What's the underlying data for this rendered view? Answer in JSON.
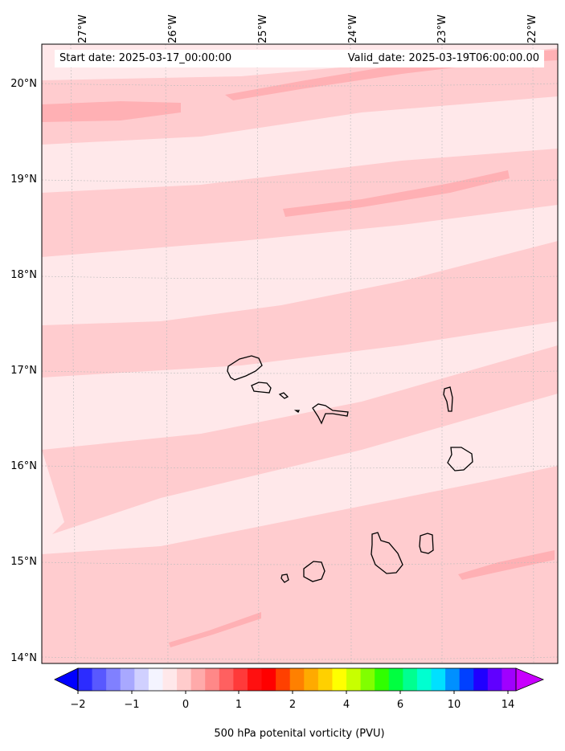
{
  "map": {
    "start_label": "Start date: 2025-03-17_00:00:00",
    "valid_label": "Valid_date: 2025-03-19T06:00:00.00",
    "lon_labels": [
      "27°W",
      "26°W",
      "25°W",
      "24°W",
      "23°W",
      "22°W"
    ],
    "lat_labels": [
      "20°N",
      "19°N",
      "18°N",
      "17°N",
      "16°N",
      "15°N",
      "14°N"
    ],
    "variable": "500 hPa potenital vorticity (PVU)",
    "colors": {
      "background": "#ffe8ea",
      "band_light": "#ffcccf",
      "band_mid": "#ffb0b4",
      "coast": "#000000"
    }
  },
  "colorbar": {
    "ticks": [
      "−2",
      "−1",
      "0",
      "1",
      "2",
      "4",
      "6",
      "10",
      "14"
    ],
    "colors": [
      "#0000ff",
      "#2c2cff",
      "#5858ff",
      "#8080ff",
      "#a8a8ff",
      "#d0d0ff",
      "#f4f4ff",
      "#ffe8ea",
      "#ffcccc",
      "#ffaaaa",
      "#ff8888",
      "#ff6060",
      "#ff3a3a",
      "#ff1010",
      "#ff0000",
      "#ff4000",
      "#ff8000",
      "#ffaa00",
      "#ffd000",
      "#ffff00",
      "#c8ff00",
      "#80ff00",
      "#30ff00",
      "#00ff40",
      "#00ff90",
      "#00ffd0",
      "#00e0ff",
      "#0090ff",
      "#0040ff",
      "#2000ff",
      "#6000ff",
      "#a000ff",
      "#c800ff"
    ]
  }
}
